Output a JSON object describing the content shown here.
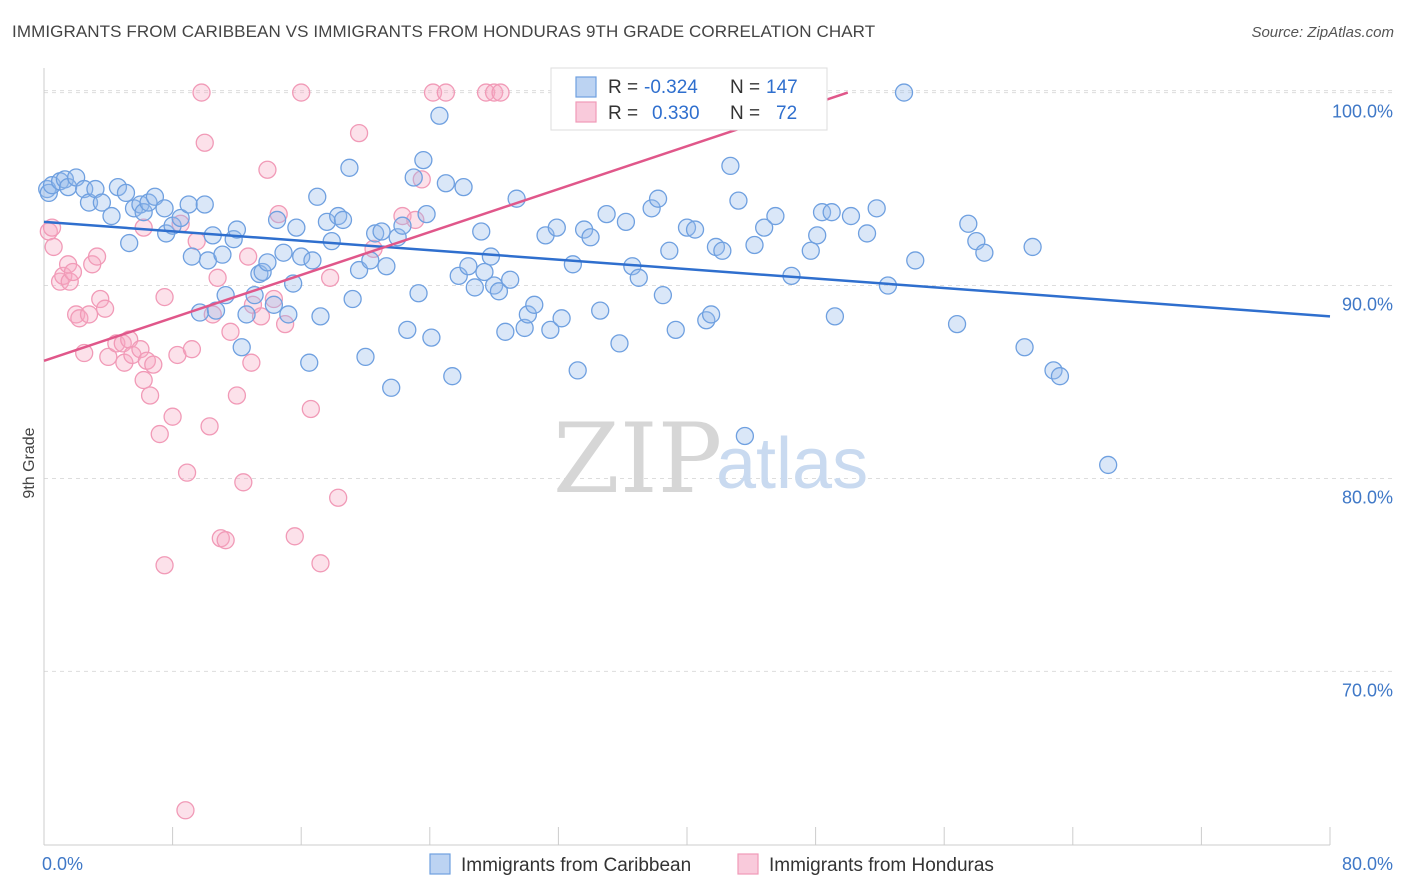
{
  "title": "IMMIGRANTS FROM CARIBBEAN VS IMMIGRANTS FROM HONDURAS 9TH GRADE CORRELATION CHART",
  "source": "Source: ZipAtlas.com",
  "watermark": {
    "zip": "ZIP",
    "atlas": "atlas"
  },
  "colors": {
    "blue": "#6fa0e0",
    "blue_line": "#2f6fce",
    "pink": "#f19ab7",
    "pink_line": "#e0578a"
  },
  "legend": {
    "rows": [
      {
        "r_label": "R =",
        "r_value": "-0.324",
        "n_label": "N =",
        "n_value": "147"
      },
      {
        "r_label": "R =",
        "r_value": "0.330",
        "n_label": "N =",
        "n_value": "72"
      }
    ]
  },
  "chart_data": {
    "type": "scatter",
    "title": "IMMIGRANTS FROM CARIBBEAN VS IMMIGRANTS FROM HONDURAS 9TH GRADE CORRELATION CHART",
    "xlabel": "",
    "ylabel": "9th Grade",
    "xlim": [
      0,
      80
    ],
    "ylim": [
      61,
      102
    ],
    "x_tick_labels": [
      "0.0%",
      "80.0%"
    ],
    "y_ticks": [
      70,
      80,
      90,
      100
    ],
    "y_tick_labels": [
      "70.0%",
      "80.0%",
      "90.0%",
      "100.0%"
    ],
    "grid": true,
    "legend_position": "top-center",
    "series": [
      {
        "name": "Immigrants from Caribbean",
        "color": "#6fa0e0",
        "trend": {
          "x": [
            0,
            80
          ],
          "y": [
            93.3,
            88.4
          ]
        },
        "points": [
          [
            0.2,
            95.0
          ],
          [
            0.3,
            94.8
          ],
          [
            0.5,
            95.2
          ],
          [
            1.0,
            95.4
          ],
          [
            1.3,
            95.5
          ],
          [
            1.5,
            95.1
          ],
          [
            2.0,
            95.6
          ],
          [
            2.5,
            95.0
          ],
          [
            2.8,
            94.3
          ],
          [
            3.2,
            95.0
          ],
          [
            3.6,
            94.3
          ],
          [
            4.2,
            93.6
          ],
          [
            4.6,
            95.1
          ],
          [
            5.1,
            94.8
          ],
          [
            5.3,
            92.2
          ],
          [
            5.6,
            94.0
          ],
          [
            6.0,
            94.2
          ],
          [
            6.2,
            93.8
          ],
          [
            6.5,
            94.3
          ],
          [
            6.9,
            94.6
          ],
          [
            7.5,
            94.0
          ],
          [
            7.6,
            92.7
          ],
          [
            8.0,
            93.1
          ],
          [
            8.5,
            93.5
          ],
          [
            9.0,
            94.2
          ],
          [
            9.2,
            91.5
          ],
          [
            9.7,
            88.6
          ],
          [
            10.0,
            94.2
          ],
          [
            10.2,
            91.3
          ],
          [
            10.5,
            92.6
          ],
          [
            10.7,
            88.7
          ],
          [
            11.1,
            91.6
          ],
          [
            11.3,
            89.5
          ],
          [
            11.8,
            92.4
          ],
          [
            12.0,
            92.9
          ],
          [
            12.3,
            86.8
          ],
          [
            12.6,
            88.5
          ],
          [
            13.1,
            89.5
          ],
          [
            13.4,
            90.6
          ],
          [
            13.6,
            90.7
          ],
          [
            13.9,
            91.2
          ],
          [
            14.3,
            89.0
          ],
          [
            14.5,
            93.4
          ],
          [
            14.9,
            91.7
          ],
          [
            15.2,
            88.5
          ],
          [
            15.5,
            90.1
          ],
          [
            15.7,
            93.0
          ],
          [
            16.0,
            91.5
          ],
          [
            16.5,
            86.0
          ],
          [
            16.7,
            91.3
          ],
          [
            17.0,
            94.6
          ],
          [
            17.2,
            88.4
          ],
          [
            17.6,
            93.3
          ],
          [
            17.9,
            92.3
          ],
          [
            18.3,
            93.6
          ],
          [
            18.6,
            93.4
          ],
          [
            19.0,
            96.1
          ],
          [
            19.2,
            89.3
          ],
          [
            19.6,
            90.8
          ],
          [
            20.0,
            86.3
          ],
          [
            20.3,
            91.3
          ],
          [
            20.6,
            92.7
          ],
          [
            21.0,
            92.8
          ],
          [
            21.3,
            91.0
          ],
          [
            21.6,
            84.7
          ],
          [
            22.0,
            92.5
          ],
          [
            22.3,
            93.1
          ],
          [
            22.6,
            87.7
          ],
          [
            23.0,
            95.6
          ],
          [
            23.3,
            89.6
          ],
          [
            23.6,
            96.5
          ],
          [
            23.8,
            93.7
          ],
          [
            24.1,
            87.3
          ],
          [
            24.6,
            98.8
          ],
          [
            25.0,
            95.3
          ],
          [
            25.4,
            85.3
          ],
          [
            25.8,
            90.5
          ],
          [
            26.1,
            95.1
          ],
          [
            26.4,
            91.0
          ],
          [
            26.8,
            89.9
          ],
          [
            27.2,
            92.8
          ],
          [
            27.4,
            90.7
          ],
          [
            27.8,
            91.5
          ],
          [
            28.0,
            90.0
          ],
          [
            28.3,
            89.7
          ],
          [
            28.7,
            87.6
          ],
          [
            29.0,
            90.3
          ],
          [
            29.4,
            94.5
          ],
          [
            29.9,
            87.8
          ],
          [
            30.1,
            88.5
          ],
          [
            30.5,
            89.0
          ],
          [
            31.2,
            92.6
          ],
          [
            31.5,
            87.7
          ],
          [
            31.9,
            93.0
          ],
          [
            32.2,
            88.3
          ],
          [
            32.9,
            91.1
          ],
          [
            33.2,
            85.6
          ],
          [
            33.6,
            92.9
          ],
          [
            34.0,
            92.5
          ],
          [
            34.6,
            88.7
          ],
          [
            35.0,
            93.7
          ],
          [
            35.8,
            87.0
          ],
          [
            36.2,
            93.3
          ],
          [
            36.6,
            91.0
          ],
          [
            37.0,
            90.4
          ],
          [
            37.8,
            94.0
          ],
          [
            38.2,
            94.5
          ],
          [
            38.5,
            89.5
          ],
          [
            38.9,
            91.8
          ],
          [
            39.3,
            87.7
          ],
          [
            40.0,
            93.0
          ],
          [
            40.5,
            92.9
          ],
          [
            41.2,
            88.2
          ],
          [
            41.5,
            88.5
          ],
          [
            41.8,
            92.0
          ],
          [
            42.2,
            91.8
          ],
          [
            42.7,
            96.2
          ],
          [
            43.2,
            94.4
          ],
          [
            43.6,
            82.2
          ],
          [
            44.2,
            92.1
          ],
          [
            44.8,
            93.0
          ],
          [
            45.5,
            93.6
          ],
          [
            46.5,
            90.5
          ],
          [
            47.7,
            91.8
          ],
          [
            48.1,
            92.6
          ],
          [
            48.4,
            93.8
          ],
          [
            49.0,
            93.8
          ],
          [
            49.2,
            88.4
          ],
          [
            50.2,
            93.6
          ],
          [
            51.2,
            92.7
          ],
          [
            51.8,
            94.0
          ],
          [
            52.5,
            90.0
          ],
          [
            53.5,
            100.0
          ],
          [
            54.2,
            91.3
          ],
          [
            56.8,
            88.0
          ],
          [
            57.5,
            93.2
          ],
          [
            58.0,
            92.3
          ],
          [
            58.5,
            91.7
          ],
          [
            61.0,
            86.8
          ],
          [
            61.5,
            92.0
          ],
          [
            62.8,
            85.6
          ],
          [
            63.2,
            85.3
          ],
          [
            66.2,
            80.7
          ]
        ]
      },
      {
        "name": "Immigrants from Honduras",
        "color": "#f19ab7",
        "trend": {
          "x": [
            0,
            50
          ],
          "y": [
            86.1,
            100.0
          ]
        },
        "points": [
          [
            0.3,
            92.8
          ],
          [
            0.5,
            93.0
          ],
          [
            0.6,
            92.0
          ],
          [
            1.0,
            90.2
          ],
          [
            1.2,
            90.5
          ],
          [
            1.5,
            91.1
          ],
          [
            1.6,
            90.2
          ],
          [
            1.8,
            90.7
          ],
          [
            2.0,
            88.5
          ],
          [
            2.2,
            88.3
          ],
          [
            2.5,
            86.5
          ],
          [
            2.8,
            88.5
          ],
          [
            3.0,
            91.1
          ],
          [
            3.3,
            91.5
          ],
          [
            3.5,
            89.3
          ],
          [
            3.8,
            88.8
          ],
          [
            4.0,
            86.3
          ],
          [
            4.5,
            87.0
          ],
          [
            4.9,
            87.0
          ],
          [
            5.0,
            86.0
          ],
          [
            5.3,
            87.2
          ],
          [
            5.5,
            86.4
          ],
          [
            6.0,
            86.7
          ],
          [
            6.2,
            85.1
          ],
          [
            6.4,
            86.1
          ],
          [
            6.6,
            84.3
          ],
          [
            6.8,
            85.9
          ],
          [
            7.2,
            82.3
          ],
          [
            7.5,
            89.4
          ],
          [
            8.0,
            83.2
          ],
          [
            8.3,
            86.4
          ],
          [
            8.5,
            93.2
          ],
          [
            8.9,
            80.3
          ],
          [
            9.2,
            86.7
          ],
          [
            9.5,
            92.3
          ],
          [
            9.8,
            100.0
          ],
          [
            10.0,
            97.4
          ],
          [
            10.3,
            82.7
          ],
          [
            10.8,
            90.4
          ],
          [
            11.0,
            76.9
          ],
          [
            11.3,
            76.8
          ],
          [
            11.6,
            87.6
          ],
          [
            12.0,
            84.3
          ],
          [
            12.4,
            79.8
          ],
          [
            12.7,
            91.5
          ],
          [
            13.0,
            89.0
          ],
          [
            13.5,
            88.4
          ],
          [
            13.9,
            96.0
          ],
          [
            14.3,
            89.3
          ],
          [
            14.6,
            93.7
          ],
          [
            15.0,
            88.0
          ],
          [
            15.6,
            77.0
          ],
          [
            16.0,
            100.0
          ],
          [
            16.6,
            83.6
          ],
          [
            17.2,
            75.6
          ],
          [
            17.8,
            90.4
          ],
          [
            18.3,
            79.0
          ],
          [
            19.6,
            97.9
          ],
          [
            22.3,
            93.6
          ],
          [
            23.1,
            93.4
          ],
          [
            23.5,
            95.5
          ],
          [
            24.2,
            100.0
          ],
          [
            25.0,
            100.0
          ],
          [
            27.5,
            100.0
          ],
          [
            28.0,
            100.0
          ],
          [
            28.4,
            100.0
          ],
          [
            7.5,
            75.5
          ],
          [
            8.8,
            62.8
          ],
          [
            6.2,
            93.0
          ],
          [
            10.5,
            88.5
          ],
          [
            12.9,
            86.0
          ],
          [
            20.5,
            91.9
          ]
        ]
      }
    ]
  }
}
